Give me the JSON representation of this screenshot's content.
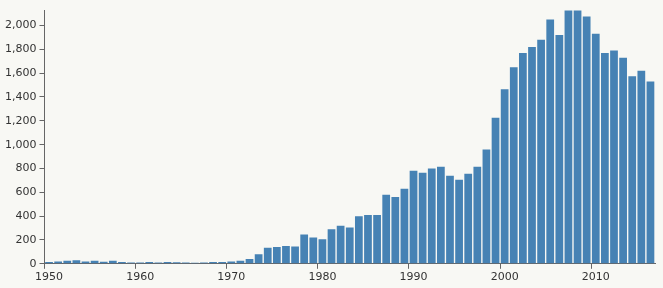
{
  "chart_data": {
    "type": "bar",
    "categories": [
      "1950",
      null,
      null,
      null,
      null,
      null,
      null,
      null,
      null,
      null,
      "1960",
      null,
      null,
      null,
      null,
      null,
      null,
      null,
      null,
      null,
      "1970",
      null,
      null,
      null,
      null,
      null,
      null,
      null,
      null,
      null,
      "1980",
      null,
      null,
      null,
      null,
      null,
      null,
      null,
      null,
      null,
      "1990",
      null,
      null,
      null,
      null,
      null,
      null,
      null,
      null,
      null,
      "2000",
      null,
      null,
      null,
      null,
      null,
      null,
      null,
      null,
      null,
      "2010",
      null,
      null,
      null,
      null,
      null,
      null
    ],
    "values": [
      15,
      20,
      25,
      30,
      20,
      25,
      18,
      25,
      15,
      10,
      10,
      15,
      10,
      15,
      12,
      10,
      8,
      10,
      15,
      15,
      20,
      25,
      40,
      80,
      135,
      140,
      150,
      145,
      245,
      220,
      205,
      290,
      320,
      305,
      400,
      410,
      410,
      580,
      560,
      630,
      780,
      765,
      800,
      815,
      740,
      705,
      755,
      815,
      960,
      1225,
      1465,
      1650,
      1770,
      1820,
      1880,
      2050,
      1920,
      2125,
      2125,
      2075,
      1930,
      1770,
      1790,
      1730,
      1575,
      1620,
      1530
    ],
    "color": "#4682b4",
    "ylim": [
      0,
      2130
    ],
    "yticks": [
      0,
      200,
      400,
      600,
      800,
      {
        "value": 1000,
        "label": "1,000"
      },
      {
        "value": 1200,
        "label": "1,200"
      },
      {
        "value": 1400,
        "label": "1,400"
      },
      {
        "value": 1600,
        "label": "1,600"
      },
      {
        "value": 1800,
        "label": "1,800"
      },
      {
        "value": 2000,
        "label": "2,000"
      }
    ],
    "grid": false
  }
}
